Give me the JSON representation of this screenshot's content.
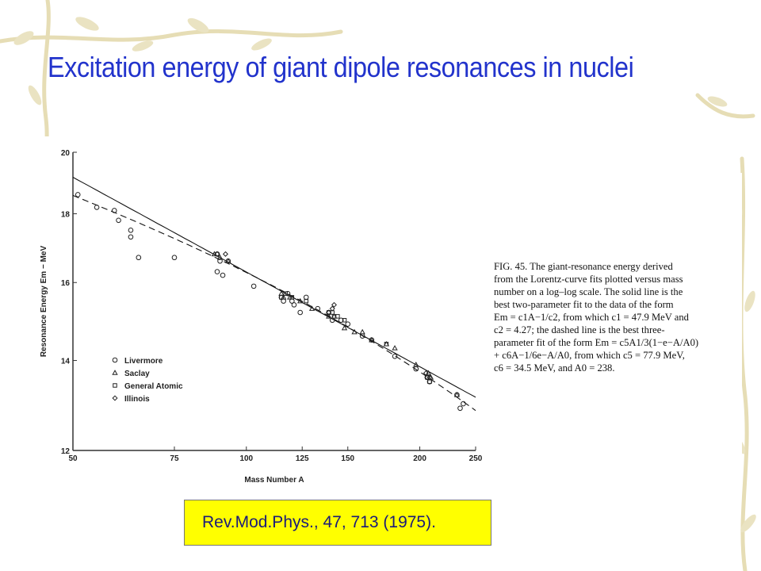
{
  "slide": {
    "title": "Excitation energy of giant dipole resonances in nuclei",
    "citation": "Rev.Mod.Phys., 47, 713 (1975)."
  },
  "figure": {
    "caption_lines": [
      "FIG. 45. The giant-resonance energy derived",
      "from the Lorentz-curve fits plotted versus mass",
      "number on a log–log scale. The solid line is the",
      "best two-parameter fit to the data of the form",
      "Em = c1A−1/c2, from which c1 = 47.9 MeV and",
      "c2 = 4.27; the dashed line is the best three-",
      "parameter fit of the form Em = c5A1/3(1−e−A/A0)",
      "+ c6A−1/6e−A/A0, from which c5 = 77.9 MeV,",
      "c6 = 34.5 MeV, and A0 = 238."
    ]
  },
  "chart_data": {
    "type": "scatter",
    "x_scale": "log",
    "y_scale": "log",
    "xlabel": "Mass Number A",
    "ylabel": "Resonance Energy Em − MeV",
    "xlim": [
      50,
      250
    ],
    "ylim": [
      12,
      20
    ],
    "x_ticks": [
      50,
      75,
      100,
      125,
      150,
      200,
      250
    ],
    "y_ticks": [
      12,
      14,
      16,
      18,
      20
    ],
    "grid": false,
    "legend_position": "bottom-left",
    "series": [
      {
        "name": "Livermore",
        "marker": "circle",
        "points": [
          [
            51,
            18.6
          ],
          [
            55,
            18.2
          ],
          [
            59,
            18.1
          ],
          [
            60,
            17.8
          ],
          [
            63,
            17.5
          ],
          [
            63,
            17.3
          ],
          [
            65,
            16.7
          ],
          [
            75,
            16.7
          ],
          [
            89,
            16.8
          ],
          [
            89,
            16.3
          ],
          [
            90,
            16.6
          ],
          [
            91,
            16.2
          ],
          [
            93,
            16.6
          ],
          [
            103,
            15.9
          ],
          [
            115,
            15.6
          ],
          [
            116,
            15.5
          ],
          [
            118,
            15.7
          ],
          [
            120,
            15.5
          ],
          [
            121,
            15.4
          ],
          [
            124,
            15.2
          ],
          [
            127,
            15.6
          ],
          [
            133,
            15.3
          ],
          [
            139,
            15.2
          ],
          [
            141,
            15.0
          ],
          [
            146,
            15.0
          ],
          [
            150,
            14.9
          ],
          [
            159,
            14.6
          ],
          [
            165,
            14.5
          ],
          [
            181,
            14.1
          ],
          [
            197,
            13.8
          ],
          [
            206,
            13.6
          ],
          [
            208,
            13.5
          ],
          [
            232,
            13.2
          ],
          [
            235,
            12.9
          ],
          [
            238,
            13.0
          ]
        ]
      },
      {
        "name": "Saclay",
        "marker": "triangle",
        "points": [
          [
            88,
            16.8
          ],
          [
            90,
            16.7
          ],
          [
            93,
            16.6
          ],
          [
            115,
            15.7
          ],
          [
            116,
            15.6
          ],
          [
            119,
            15.6
          ],
          [
            124,
            15.5
          ],
          [
            130,
            15.3
          ],
          [
            139,
            15.1
          ],
          [
            142,
            15.1
          ],
          [
            148,
            14.8
          ],
          [
            154,
            14.7
          ],
          [
            159,
            14.7
          ],
          [
            165,
            14.5
          ],
          [
            175,
            14.4
          ],
          [
            181,
            14.3
          ],
          [
            197,
            13.9
          ],
          [
            207,
            13.7
          ],
          [
            209,
            13.6
          ],
          [
            232,
            13.2
          ]
        ]
      },
      {
        "name": "General Atomic",
        "marker": "square",
        "points": [
          [
            115,
            15.6
          ],
          [
            117,
            15.7
          ],
          [
            120,
            15.6
          ],
          [
            127,
            15.5
          ],
          [
            139,
            15.2
          ],
          [
            141,
            15.2
          ],
          [
            142,
            15.1
          ],
          [
            144,
            15.1
          ],
          [
            148,
            15.0
          ],
          [
            175,
            14.4
          ],
          [
            206,
            13.6
          ],
          [
            208,
            13.5
          ]
        ]
      },
      {
        "name": "Illinois",
        "marker": "diamond",
        "points": [
          [
            89,
            16.8
          ],
          [
            92,
            16.8
          ],
          [
            139,
            15.2
          ],
          [
            141,
            15.3
          ],
          [
            142,
            15.4
          ],
          [
            205,
            13.7
          ],
          [
            206,
            13.6
          ],
          [
            208,
            13.6
          ]
        ]
      }
    ],
    "fit_curves": [
      {
        "style": "solid",
        "form": "Em = c1 A^(-1/c2)",
        "c1": 47.9,
        "c2": 4.27
      },
      {
        "style": "dashed",
        "form": "Em = c5 A^(-1/3)(1 - e^(-A/A0)) + c6 A^(-1/6) e^(-A/A0)",
        "c5": 77.9,
        "c6": 34.5,
        "A0": 238
      }
    ]
  }
}
